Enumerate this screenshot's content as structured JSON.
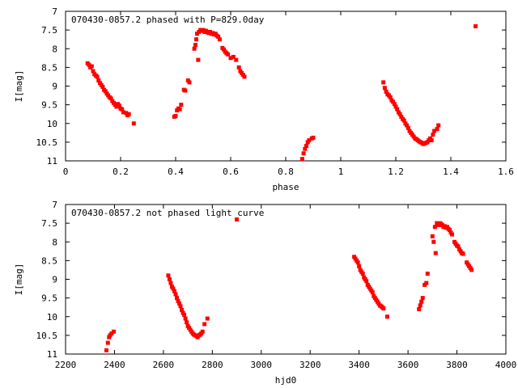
{
  "chart_data": [
    {
      "type": "scatter",
      "title": "070430-0857.2 phased with P=829.0day",
      "xlabel": "phase",
      "ylabel": "I[mag]",
      "xlim": [
        0,
        1.6
      ],
      "ylim": [
        7,
        11
      ],
      "y_inverted": true,
      "grid": false,
      "legend": "none",
      "xticks": [
        "0",
        "0.2",
        "0.4",
        "0.6",
        "0.8",
        "1",
        "1.2",
        "1.4",
        "1.6"
      ],
      "yticks": [
        "7",
        "7.5",
        "8",
        "8.5",
        "9",
        "9.5",
        "10",
        "10.5",
        "11"
      ],
      "series": [
        {
          "color": "#ff0000",
          "points": [
            [
              0.08,
              8.39
            ],
            [
              0.085,
              8.43
            ],
            [
              0.09,
              8.5
            ],
            [
              0.095,
              8.47
            ],
            [
              0.1,
              8.6
            ],
            [
              0.105,
              8.68
            ],
            [
              0.11,
              8.72
            ],
            [
              0.115,
              8.75
            ],
            [
              0.12,
              8.85
            ],
            [
              0.125,
              8.92
            ],
            [
              0.13,
              8.97
            ],
            [
              0.135,
              9.02
            ],
            [
              0.14,
              9.1
            ],
            [
              0.145,
              9.14
            ],
            [
              0.15,
              9.2
            ],
            [
              0.155,
              9.25
            ],
            [
              0.16,
              9.3
            ],
            [
              0.165,
              9.33
            ],
            [
              0.17,
              9.4
            ],
            [
              0.175,
              9.45
            ],
            [
              0.18,
              9.5
            ],
            [
              0.185,
              9.55
            ],
            [
              0.19,
              9.48
            ],
            [
              0.195,
              9.52
            ],
            [
              0.2,
              9.6
            ],
            [
              0.205,
              9.62
            ],
            [
              0.21,
              9.7
            ],
            [
              0.22,
              9.72
            ],
            [
              0.225,
              9.78
            ],
            [
              0.23,
              9.75
            ],
            [
              0.248,
              10.0
            ],
            [
              0.395,
              9.82
            ],
            [
              0.4,
              9.8
            ],
            [
              0.405,
              9.65
            ],
            [
              0.41,
              9.6
            ],
            [
              0.415,
              9.62
            ],
            [
              0.42,
              9.5
            ],
            [
              0.43,
              9.1
            ],
            [
              0.435,
              9.12
            ],
            [
              0.445,
              8.85
            ],
            [
              0.45,
              8.9
            ],
            [
              0.468,
              8.0
            ],
            [
              0.472,
              7.9
            ],
            [
              0.475,
              7.75
            ],
            [
              0.478,
              7.6
            ],
            [
              0.482,
              8.3
            ],
            [
              0.485,
              7.55
            ],
            [
              0.49,
              7.5
            ],
            [
              0.495,
              7.52
            ],
            [
              0.5,
              7.5
            ],
            [
              0.505,
              7.55
            ],
            [
              0.51,
              7.52
            ],
            [
              0.515,
              7.56
            ],
            [
              0.52,
              7.58
            ],
            [
              0.525,
              7.55
            ],
            [
              0.53,
              7.6
            ],
            [
              0.535,
              7.58
            ],
            [
              0.54,
              7.62
            ],
            [
              0.545,
              7.6
            ],
            [
              0.55,
              7.65
            ],
            [
              0.555,
              7.68
            ],
            [
              0.56,
              7.75
            ],
            [
              0.57,
              7.98
            ],
            [
              0.575,
              8.02
            ],
            [
              0.58,
              8.08
            ],
            [
              0.585,
              8.12
            ],
            [
              0.59,
              8.15
            ],
            [
              0.6,
              8.25
            ],
            [
              0.61,
              8.22
            ],
            [
              0.62,
              8.3
            ],
            [
              0.63,
              8.5
            ],
            [
              0.635,
              8.6
            ],
            [
              0.64,
              8.65
            ],
            [
              0.645,
              8.7
            ],
            [
              0.65,
              8.75
            ],
            [
              0.86,
              10.95
            ],
            [
              0.865,
              10.8
            ],
            [
              0.87,
              10.68
            ],
            [
              0.875,
              10.6
            ],
            [
              0.88,
              10.5
            ],
            [
              0.885,
              10.45
            ],
            [
              0.895,
              10.4
            ],
            [
              0.9,
              10.38
            ],
            [
              1.155,
              8.9
            ],
            [
              1.16,
              9.05
            ],
            [
              1.165,
              9.15
            ],
            [
              1.17,
              9.22
            ],
            [
              1.175,
              9.25
            ],
            [
              1.18,
              9.3
            ],
            [
              1.185,
              9.38
            ],
            [
              1.19,
              9.42
            ],
            [
              1.195,
              9.48
            ],
            [
              1.2,
              9.55
            ],
            [
              1.205,
              9.62
            ],
            [
              1.21,
              9.7
            ],
            [
              1.215,
              9.75
            ],
            [
              1.22,
              9.82
            ],
            [
              1.225,
              9.88
            ],
            [
              1.23,
              9.92
            ],
            [
              1.235,
              10.0
            ],
            [
              1.24,
              10.05
            ],
            [
              1.245,
              10.12
            ],
            [
              1.25,
              10.2
            ],
            [
              1.255,
              10.25
            ],
            [
              1.26,
              10.3
            ],
            [
              1.265,
              10.35
            ],
            [
              1.27,
              10.4
            ],
            [
              1.275,
              10.42
            ],
            [
              1.28,
              10.45
            ],
            [
              1.285,
              10.48
            ],
            [
              1.29,
              10.5
            ],
            [
              1.295,
              10.52
            ],
            [
              1.3,
              10.55
            ],
            [
              1.305,
              10.53
            ],
            [
              1.31,
              10.52
            ],
            [
              1.315,
              10.5
            ],
            [
              1.32,
              10.45
            ],
            [
              1.325,
              10.4
            ],
            [
              1.33,
              10.45
            ],
            [
              1.335,
              10.3
            ],
            [
              1.34,
              10.2
            ],
            [
              1.35,
              10.15
            ],
            [
              1.355,
              10.05
            ],
            [
              1.49,
              7.4
            ]
          ]
        }
      ]
    },
    {
      "type": "scatter",
      "title": "070430-0857.2 not phased light curve",
      "xlabel": "hjd0",
      "ylabel": "I[mag]",
      "xlim": [
        2200,
        4000
      ],
      "ylim": [
        7,
        11
      ],
      "y_inverted": true,
      "grid": false,
      "legend": "none",
      "xticks": [
        "2200",
        "2400",
        "2600",
        "2800",
        "3000",
        "3200",
        "3400",
        "3600",
        "3800",
        "4000"
      ],
      "yticks": [
        "7",
        "7.5",
        "8",
        "8.5",
        "9",
        "9.5",
        "10",
        "10.5",
        "11"
      ],
      "series": [
        {
          "color": "#ff0000",
          "points": [
            [
              2367,
              10.9
            ],
            [
              2373,
              10.7
            ],
            [
              2378,
              10.55
            ],
            [
              2382,
              10.5
            ],
            [
              2388,
              10.45
            ],
            [
              2397,
              10.4
            ],
            [
              2620,
              8.9
            ],
            [
              2625,
              9.0
            ],
            [
              2630,
              9.1
            ],
            [
              2635,
              9.2
            ],
            [
              2640,
              9.25
            ],
            [
              2645,
              9.32
            ],
            [
              2650,
              9.4
            ],
            [
              2655,
              9.5
            ],
            [
              2660,
              9.58
            ],
            [
              2665,
              9.65
            ],
            [
              2670,
              9.72
            ],
            [
              2675,
              9.82
            ],
            [
              2680,
              9.9
            ],
            [
              2685,
              9.95
            ],
            [
              2690,
              10.05
            ],
            [
              2695,
              10.15
            ],
            [
              2700,
              10.25
            ],
            [
              2705,
              10.3
            ],
            [
              2710,
              10.35
            ],
            [
              2715,
              10.4
            ],
            [
              2720,
              10.45
            ],
            [
              2725,
              10.48
            ],
            [
              2730,
              10.5
            ],
            [
              2735,
              10.52
            ],
            [
              2740,
              10.55
            ],
            [
              2745,
              10.5
            ],
            [
              2750,
              10.48
            ],
            [
              2755,
              10.45
            ],
            [
              2760,
              10.4
            ],
            [
              2768,
              10.2
            ],
            [
              2780,
              10.05
            ],
            [
              2900,
              7.4
            ],
            [
              3380,
              8.4
            ],
            [
              3385,
              8.45
            ],
            [
              3390,
              8.5
            ],
            [
              3395,
              8.55
            ],
            [
              3400,
              8.65
            ],
            [
              3405,
              8.75
            ],
            [
              3410,
              8.8
            ],
            [
              3415,
              8.85
            ],
            [
              3420,
              8.95
            ],
            [
              3425,
              9.0
            ],
            [
              3430,
              9.05
            ],
            [
              3435,
              9.15
            ],
            [
              3440,
              9.2
            ],
            [
              3445,
              9.25
            ],
            [
              3450,
              9.3
            ],
            [
              3455,
              9.35
            ],
            [
              3460,
              9.45
            ],
            [
              3465,
              9.5
            ],
            [
              3470,
              9.55
            ],
            [
              3475,
              9.6
            ],
            [
              3480,
              9.65
            ],
            [
              3485,
              9.7
            ],
            [
              3490,
              9.72
            ],
            [
              3495,
              9.75
            ],
            [
              3500,
              9.78
            ],
            [
              3515,
              10.0
            ],
            [
              3645,
              9.8
            ],
            [
              3650,
              9.7
            ],
            [
              3655,
              9.6
            ],
            [
              3660,
              9.5
            ],
            [
              3668,
              9.15
            ],
            [
              3675,
              9.1
            ],
            [
              3680,
              8.85
            ],
            [
              3700,
              7.85
            ],
            [
              3705,
              8.0
            ],
            [
              3710,
              7.6
            ],
            [
              3713,
              8.3
            ],
            [
              3718,
              7.5
            ],
            [
              3722,
              7.52
            ],
            [
              3726,
              7.55
            ],
            [
              3730,
              7.5
            ],
            [
              3735,
              7.52
            ],
            [
              3740,
              7.55
            ],
            [
              3745,
              7.6
            ],
            [
              3750,
              7.58
            ],
            [
              3755,
              7.62
            ],
            [
              3760,
              7.6
            ],
            [
              3765,
              7.65
            ],
            [
              3770,
              7.68
            ],
            [
              3775,
              7.75
            ],
            [
              3780,
              7.8
            ],
            [
              3790,
              8.0
            ],
            [
              3795,
              8.05
            ],
            [
              3800,
              8.1
            ],
            [
              3805,
              8.12
            ],
            [
              3810,
              8.2
            ],
            [
              3815,
              8.25
            ],
            [
              3820,
              8.3
            ],
            [
              3825,
              8.32
            ],
            [
              3840,
              8.55
            ],
            [
              3845,
              8.6
            ],
            [
              3850,
              8.65
            ],
            [
              3855,
              8.7
            ],
            [
              3860,
              8.75
            ]
          ]
        }
      ]
    }
  ]
}
